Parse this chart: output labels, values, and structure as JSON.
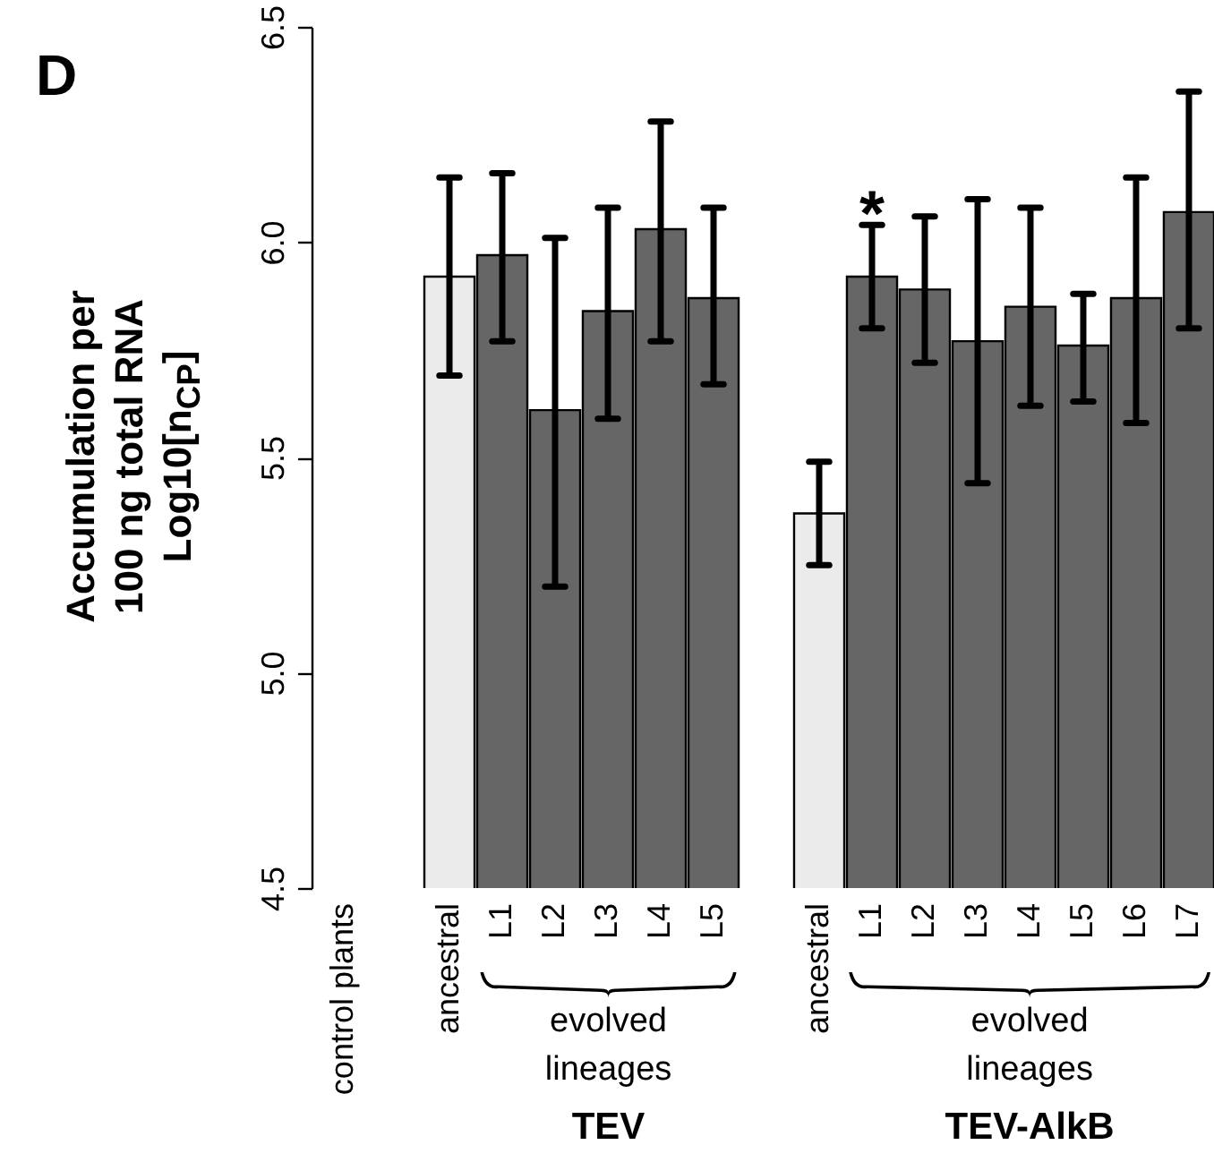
{
  "chart_data": {
    "type": "bar",
    "ylabel": "Accumulation per\n100 ng total RNA\nLog10[n$_{CP}$]",
    "categories": [
      "control plants",
      null,
      "ancestral",
      "L1",
      "L2",
      "L3",
      "L4",
      "L5",
      null,
      "ancestral",
      "L1",
      "L2",
      "L3",
      "L4",
      "L5",
      "L6",
      "L7"
    ],
    "values": [
      null,
      null,
      5.92,
      5.97,
      5.61,
      5.84,
      6.03,
      5.87,
      null,
      5.37,
      5.92,
      5.89,
      5.77,
      5.85,
      5.76,
      5.87,
      6.07
    ],
    "errors": [
      null,
      null,
      [
        5.69,
        6.15
      ],
      [
        5.77,
        6.16
      ],
      [
        5.2,
        6.01
      ],
      [
        5.59,
        6.08
      ],
      [
        5.77,
        6.28
      ],
      [
        5.67,
        6.08
      ],
      null,
      [
        5.25,
        5.49
      ],
      [
        5.8,
        6.04
      ],
      [
        5.72,
        6.06
      ],
      [
        5.44,
        6.1
      ],
      [
        5.62,
        6.08
      ],
      [
        5.63,
        5.88
      ],
      [
        5.58,
        6.15
      ],
      [
        5.8,
        6.35
      ]
    ],
    "colors": [
      null,
      null,
      "#ebebeb",
      "#666666",
      "#666666",
      "#666666",
      "#666666",
      "#666666",
      null,
      "#ebebeb",
      "#666666",
      "#666666",
      "#666666",
      "#666666",
      "#666666",
      "#666666",
      "#666666"
    ],
    "ylim": [
      4.5,
      6.5
    ],
    "yticks": [
      {
        "value": 4.5,
        "label": "4.5"
      },
      {
        "value": 5,
        "label": "5.0"
      },
      {
        "value": 5.5,
        "label": "5.5"
      },
      {
        "value": 6,
        "label": "6.0"
      },
      {
        "value": 6.5,
        "label": "6.5"
      }
    ],
    "annotations": [
      "D",
      "evolved lineages",
      "evolved lineages",
      "TEV",
      "TEV-AlkB",
      "*"
    ]
  }
}
